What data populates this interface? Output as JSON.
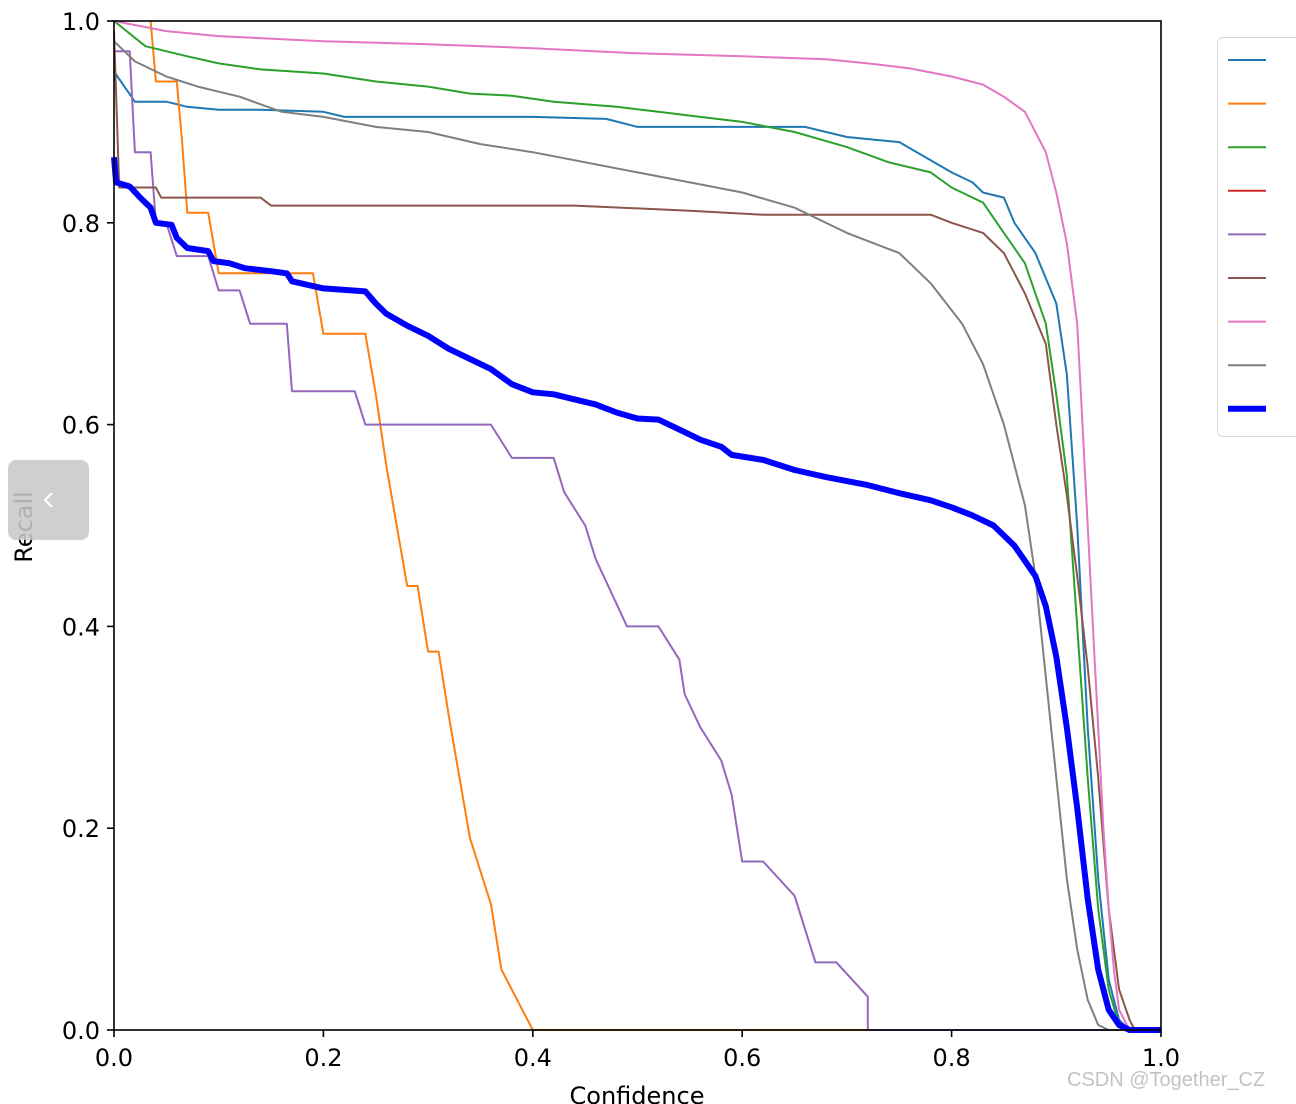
{
  "chart_data": {
    "type": "line",
    "xlabel": "Confidence",
    "ylabel": "Recall",
    "xlim": [
      0,
      1
    ],
    "ylim": [
      0,
      1
    ],
    "x_ticks": [
      "0.0",
      "0.2",
      "0.4",
      "0.6",
      "0.8",
      "1.0"
    ],
    "y_ticks": [
      "0.0",
      "0.2",
      "0.4",
      "0.6",
      "0.8",
      "1.0"
    ],
    "grid": false,
    "legend_position": "top-right",
    "series": [
      {
        "color": "#1f77b4",
        "width": 2,
        "points": [
          [
            0,
            0.95
          ],
          [
            0.02,
            0.92
          ],
          [
            0.05,
            0.92
          ],
          [
            0.07,
            0.915
          ],
          [
            0.1,
            0.912
          ],
          [
            0.14,
            0.912
          ],
          [
            0.2,
            0.91
          ],
          [
            0.22,
            0.905
          ],
          [
            0.4,
            0.905
          ],
          [
            0.47,
            0.903
          ],
          [
            0.5,
            0.895
          ],
          [
            0.6,
            0.895
          ],
          [
            0.66,
            0.895
          ],
          [
            0.7,
            0.885
          ],
          [
            0.75,
            0.88
          ],
          [
            0.8,
            0.85
          ],
          [
            0.82,
            0.84
          ],
          [
            0.83,
            0.83
          ],
          [
            0.85,
            0.825
          ],
          [
            0.86,
            0.8
          ],
          [
            0.88,
            0.77
          ],
          [
            0.9,
            0.72
          ],
          [
            0.91,
            0.65
          ],
          [
            0.92,
            0.5
          ],
          [
            0.93,
            0.3
          ],
          [
            0.94,
            0.15
          ],
          [
            0.95,
            0.05
          ],
          [
            0.96,
            0.01
          ],
          [
            0.97,
            0
          ],
          [
            1,
            0
          ]
        ]
      },
      {
        "color": "#ff7f0e",
        "width": 2,
        "points": [
          [
            0.035,
            1
          ],
          [
            0.04,
            0.94
          ],
          [
            0.06,
            0.94
          ],
          [
            0.065,
            0.88
          ],
          [
            0.07,
            0.81
          ],
          [
            0.09,
            0.81
          ],
          [
            0.1,
            0.75
          ],
          [
            0.19,
            0.75
          ],
          [
            0.2,
            0.69
          ],
          [
            0.24,
            0.69
          ],
          [
            0.25,
            0.63
          ],
          [
            0.26,
            0.56
          ],
          [
            0.27,
            0.5
          ],
          [
            0.28,
            0.44
          ],
          [
            0.29,
            0.44
          ],
          [
            0.3,
            0.375
          ],
          [
            0.31,
            0.375
          ],
          [
            0.32,
            0.31
          ],
          [
            0.33,
            0.25
          ],
          [
            0.34,
            0.19
          ],
          [
            0.36,
            0.125
          ],
          [
            0.37,
            0.06
          ],
          [
            0.4,
            0
          ],
          [
            0.72,
            0
          ]
        ]
      },
      {
        "color": "#2ca02c",
        "width": 2,
        "points": [
          [
            0,
            1
          ],
          [
            0.03,
            0.975
          ],
          [
            0.07,
            0.965
          ],
          [
            0.1,
            0.958
          ],
          [
            0.14,
            0.952
          ],
          [
            0.2,
            0.948
          ],
          [
            0.25,
            0.94
          ],
          [
            0.3,
            0.935
          ],
          [
            0.34,
            0.928
          ],
          [
            0.38,
            0.926
          ],
          [
            0.42,
            0.92
          ],
          [
            0.48,
            0.915
          ],
          [
            0.52,
            0.91
          ],
          [
            0.56,
            0.905
          ],
          [
            0.6,
            0.9
          ],
          [
            0.65,
            0.89
          ],
          [
            0.7,
            0.875
          ],
          [
            0.74,
            0.86
          ],
          [
            0.78,
            0.85
          ],
          [
            0.8,
            0.835
          ],
          [
            0.83,
            0.82
          ],
          [
            0.85,
            0.79
          ],
          [
            0.87,
            0.76
          ],
          [
            0.89,
            0.7
          ],
          [
            0.9,
            0.63
          ],
          [
            0.91,
            0.55
          ],
          [
            0.92,
            0.4
          ],
          [
            0.93,
            0.25
          ],
          [
            0.94,
            0.12
          ],
          [
            0.95,
            0.04
          ],
          [
            0.96,
            0.005
          ],
          [
            0.97,
            0
          ],
          [
            1,
            0
          ]
        ]
      },
      {
        "color": "#d62728",
        "width": 2,
        "points": [
          [
            0.97,
            0
          ],
          [
            1,
            0
          ]
        ]
      },
      {
        "color": "#9467bd",
        "width": 2,
        "points": [
          [
            0,
            0.97
          ],
          [
            0.015,
            0.97
          ],
          [
            0.02,
            0.87
          ],
          [
            0.035,
            0.87
          ],
          [
            0.04,
            0.8
          ],
          [
            0.05,
            0.8
          ],
          [
            0.06,
            0.767
          ],
          [
            0.09,
            0.767
          ],
          [
            0.1,
            0.733
          ],
          [
            0.12,
            0.733
          ],
          [
            0.13,
            0.7
          ],
          [
            0.165,
            0.7
          ],
          [
            0.17,
            0.633
          ],
          [
            0.23,
            0.633
          ],
          [
            0.24,
            0.6
          ],
          [
            0.36,
            0.6
          ],
          [
            0.38,
            0.567
          ],
          [
            0.42,
            0.567
          ],
          [
            0.43,
            0.533
          ],
          [
            0.45,
            0.5
          ],
          [
            0.46,
            0.467
          ],
          [
            0.49,
            0.4
          ],
          [
            0.52,
            0.4
          ],
          [
            0.54,
            0.367
          ],
          [
            0.545,
            0.333
          ],
          [
            0.56,
            0.3
          ],
          [
            0.58,
            0.267
          ],
          [
            0.59,
            0.233
          ],
          [
            0.6,
            0.167
          ],
          [
            0.62,
            0.167
          ],
          [
            0.65,
            0.133
          ],
          [
            0.66,
            0.1
          ],
          [
            0.67,
            0.067
          ],
          [
            0.69,
            0.067
          ],
          [
            0.72,
            0.033
          ],
          [
            0.72,
            0
          ],
          [
            0.97,
            0
          ]
        ]
      },
      {
        "color": "#8c564b",
        "width": 2,
        "points": [
          [
            0,
            0.99
          ],
          [
            0.005,
            0.835
          ],
          [
            0.04,
            0.835
          ],
          [
            0.045,
            0.825
          ],
          [
            0.14,
            0.825
          ],
          [
            0.15,
            0.817
          ],
          [
            0.3,
            0.817
          ],
          [
            0.44,
            0.817
          ],
          [
            0.55,
            0.812
          ],
          [
            0.62,
            0.808
          ],
          [
            0.7,
            0.808
          ],
          [
            0.78,
            0.808
          ],
          [
            0.8,
            0.8
          ],
          [
            0.83,
            0.79
          ],
          [
            0.85,
            0.77
          ],
          [
            0.87,
            0.73
          ],
          [
            0.89,
            0.68
          ],
          [
            0.9,
            0.6
          ],
          [
            0.91,
            0.53
          ],
          [
            0.92,
            0.45
          ],
          [
            0.93,
            0.36
          ],
          [
            0.94,
            0.25
          ],
          [
            0.95,
            0.12
          ],
          [
            0.96,
            0.04
          ],
          [
            0.97,
            0.01
          ],
          [
            0.975,
            0
          ],
          [
            1,
            0
          ]
        ]
      },
      {
        "color": "#e377c2",
        "width": 2,
        "points": [
          [
            0,
            1
          ],
          [
            0.05,
            0.99
          ],
          [
            0.1,
            0.985
          ],
          [
            0.2,
            0.98
          ],
          [
            0.3,
            0.977
          ],
          [
            0.4,
            0.973
          ],
          [
            0.5,
            0.968
          ],
          [
            0.6,
            0.965
          ],
          [
            0.68,
            0.962
          ],
          [
            0.72,
            0.958
          ],
          [
            0.76,
            0.953
          ],
          [
            0.8,
            0.945
          ],
          [
            0.83,
            0.937
          ],
          [
            0.85,
            0.925
          ],
          [
            0.87,
            0.91
          ],
          [
            0.88,
            0.89
          ],
          [
            0.89,
            0.87
          ],
          [
            0.9,
            0.83
          ],
          [
            0.91,
            0.78
          ],
          [
            0.92,
            0.7
          ],
          [
            0.925,
            0.6
          ],
          [
            0.93,
            0.5
          ],
          [
            0.935,
            0.4
          ],
          [
            0.94,
            0.3
          ],
          [
            0.945,
            0.2
          ],
          [
            0.95,
            0.12
          ],
          [
            0.955,
            0.06
          ],
          [
            0.96,
            0.02
          ],
          [
            0.97,
            0
          ],
          [
            1,
            0
          ]
        ]
      },
      {
        "color": "#7f7f7f",
        "width": 2,
        "points": [
          [
            0,
            0.98
          ],
          [
            0.02,
            0.96
          ],
          [
            0.05,
            0.945
          ],
          [
            0.08,
            0.935
          ],
          [
            0.12,
            0.925
          ],
          [
            0.16,
            0.91
          ],
          [
            0.2,
            0.905
          ],
          [
            0.25,
            0.895
          ],
          [
            0.3,
            0.89
          ],
          [
            0.35,
            0.878
          ],
          [
            0.4,
            0.87
          ],
          [
            0.45,
            0.86
          ],
          [
            0.5,
            0.85
          ],
          [
            0.55,
            0.84
          ],
          [
            0.6,
            0.83
          ],
          [
            0.65,
            0.815
          ],
          [
            0.7,
            0.79
          ],
          [
            0.75,
            0.77
          ],
          [
            0.78,
            0.74
          ],
          [
            0.81,
            0.7
          ],
          [
            0.83,
            0.66
          ],
          [
            0.85,
            0.6
          ],
          [
            0.87,
            0.52
          ],
          [
            0.88,
            0.45
          ],
          [
            0.89,
            0.35
          ],
          [
            0.9,
            0.25
          ],
          [
            0.91,
            0.15
          ],
          [
            0.92,
            0.08
          ],
          [
            0.93,
            0.03
          ],
          [
            0.94,
            0.005
          ],
          [
            0.95,
            0
          ],
          [
            1,
            0
          ]
        ]
      },
      {
        "color": "#0000ff",
        "width": 6,
        "points": [
          [
            0,
            0.865
          ],
          [
            0.002,
            0.84
          ],
          [
            0.015,
            0.836
          ],
          [
            0.025,
            0.825
          ],
          [
            0.035,
            0.815
          ],
          [
            0.04,
            0.8
          ],
          [
            0.055,
            0.798
          ],
          [
            0.06,
            0.785
          ],
          [
            0.07,
            0.775
          ],
          [
            0.09,
            0.772
          ],
          [
            0.095,
            0.762
          ],
          [
            0.11,
            0.76
          ],
          [
            0.125,
            0.755
          ],
          [
            0.15,
            0.752
          ],
          [
            0.165,
            0.75
          ],
          [
            0.17,
            0.742
          ],
          [
            0.2,
            0.735
          ],
          [
            0.24,
            0.732
          ],
          [
            0.25,
            0.72
          ],
          [
            0.26,
            0.71
          ],
          [
            0.28,
            0.698
          ],
          [
            0.3,
            0.688
          ],
          [
            0.32,
            0.675
          ],
          [
            0.34,
            0.665
          ],
          [
            0.36,
            0.655
          ],
          [
            0.38,
            0.64
          ],
          [
            0.4,
            0.632
          ],
          [
            0.42,
            0.63
          ],
          [
            0.44,
            0.625
          ],
          [
            0.46,
            0.62
          ],
          [
            0.48,
            0.612
          ],
          [
            0.5,
            0.606
          ],
          [
            0.52,
            0.605
          ],
          [
            0.54,
            0.595
          ],
          [
            0.56,
            0.585
          ],
          [
            0.58,
            0.578
          ],
          [
            0.59,
            0.57
          ],
          [
            0.62,
            0.565
          ],
          [
            0.65,
            0.555
          ],
          [
            0.68,
            0.548
          ],
          [
            0.72,
            0.54
          ],
          [
            0.75,
            0.532
          ],
          [
            0.78,
            0.525
          ],
          [
            0.8,
            0.518
          ],
          [
            0.82,
            0.51
          ],
          [
            0.84,
            0.5
          ],
          [
            0.86,
            0.48
          ],
          [
            0.88,
            0.45
          ],
          [
            0.89,
            0.42
          ],
          [
            0.9,
            0.37
          ],
          [
            0.91,
            0.3
          ],
          [
            0.92,
            0.22
          ],
          [
            0.93,
            0.13
          ],
          [
            0.94,
            0.06
          ],
          [
            0.95,
            0.02
          ],
          [
            0.96,
            0.005
          ],
          [
            0.97,
            0
          ],
          [
            1,
            0
          ]
        ]
      }
    ]
  },
  "watermark": "CSDN @Together_CZ",
  "icons": {
    "back_button": "chevron-left-icon"
  }
}
